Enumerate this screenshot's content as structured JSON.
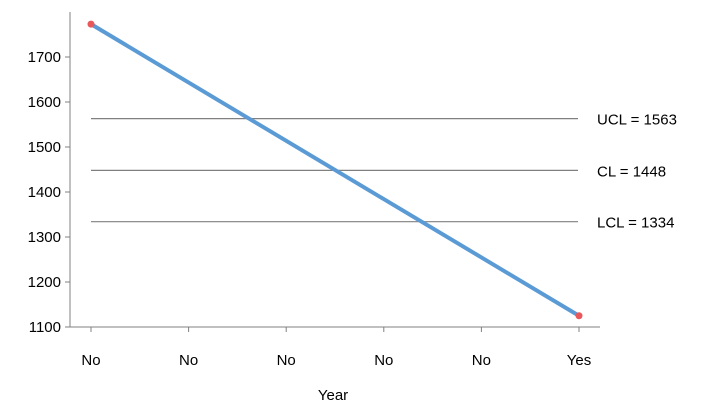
{
  "chart_data": {
    "type": "line",
    "x": [
      "No",
      "No",
      "No",
      "No",
      "No",
      "Yes"
    ],
    "series": [
      {
        "values": [
          1773,
          null,
          null,
          null,
          null,
          1125
        ]
      }
    ],
    "xlabel": "Year",
    "ylabel": "",
    "ylim": [
      1100,
      1800
    ],
    "yticks": [
      "1100",
      "1200",
      "1300",
      "1400",
      "1500",
      "1600",
      "1700"
    ],
    "control_lines": [
      {
        "label": "UCL = 1563",
        "value": 1563
      },
      {
        "label": "CL = 1448",
        "value": 1448
      },
      {
        "label": "LCL = 1334",
        "value": 1334
      }
    ],
    "grid": false,
    "colors": {
      "line": "#5b9bd5",
      "marker": "#e8585a",
      "control": "#808080",
      "axis": "#808080"
    }
  }
}
